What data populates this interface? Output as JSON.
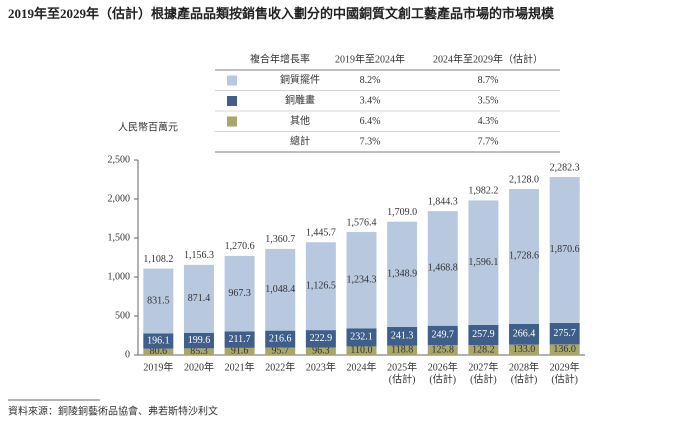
{
  "chart_data": {
    "type": "stacked_bar",
    "title": "2019年至2029年（估計）根據產品品類按銷售收入劃分的中國銅質文創工藝產品市場的市場規模",
    "y_label": "人民幣百萬元",
    "categories": [
      [
        "2019年"
      ],
      [
        "2020年"
      ],
      [
        "2021年"
      ],
      [
        "2022年"
      ],
      [
        "2023年"
      ],
      [
        "2024年"
      ],
      [
        "2025年",
        "(估計)"
      ],
      [
        "2026年",
        "(估計)"
      ],
      [
        "2027年",
        "(估計)"
      ],
      [
        "2028年",
        "(估計)"
      ],
      [
        "2029年",
        "(估計)"
      ]
    ],
    "series": [
      {
        "name": "其他",
        "color": "#a9a66c",
        "values": [
          80.6,
          85.3,
          91.6,
          95.7,
          96.3,
          110.0,
          118.8,
          125.8,
          128.2,
          133.0,
          136.0
        ],
        "value_labels": [
          "80.6",
          "85.3",
          "91.6",
          "95.7",
          "96.3",
          "110.0",
          "118.8",
          "125.8",
          "128.2",
          "133.0",
          "136.0"
        ]
      },
      {
        "name": "銅雕畫",
        "color": "#3f5f8a",
        "values": [
          196.1,
          199.6,
          211.7,
          216.6,
          222.9,
          232.1,
          241.3,
          249.7,
          257.9,
          266.4,
          275.7
        ],
        "value_labels": [
          "196.1",
          "199.6",
          "211.7",
          "216.6",
          "222.9",
          "232.1",
          "241.3",
          "249.7",
          "257.9",
          "266.4",
          "275.7"
        ]
      },
      {
        "name": "銅質擺件",
        "color": "#b8c8df",
        "values": [
          831.5,
          871.4,
          967.3,
          1048.4,
          1126.5,
          1234.3,
          1348.9,
          1468.8,
          1596.1,
          1728.6,
          1870.6
        ],
        "value_labels": [
          "831.5",
          "871.4",
          "967.3",
          "1,048.4",
          "1,126.5",
          "1,234.3",
          "1,348.9",
          "1,468.8",
          "1,596.1",
          "1,728.6",
          "1,870.6"
        ]
      }
    ],
    "totals": [
      1108.2,
      1156.3,
      1270.6,
      1360.7,
      1445.7,
      1576.4,
      1709.0,
      1844.3,
      1982.2,
      2128.0,
      2282.3
    ],
    "total_labels": [
      "1,108.2",
      "1,156.3",
      "1,270.6",
      "1,360.7",
      "1,445.7",
      "1,576.4",
      "1,709.0",
      "1,844.3",
      "1,982.2",
      "2,128.0",
      "2,282.3"
    ],
    "ylim": [
      0,
      2500
    ],
    "yticks": [
      0,
      500,
      {
        "value": 1000,
        "label": "1,000"
      },
      {
        "value": 1500,
        "label": "1,500"
      },
      {
        "value": 2000,
        "label": "2,000"
      },
      {
        "value": 2500,
        "label": "2,500"
      }
    ],
    "cagr_table": {
      "header": [
        "複合年增長率",
        "2019年至2024年",
        "2024年至2029年（估計）"
      ],
      "rows": [
        [
          "8.2%",
          "8.7%"
        ],
        [
          "3.4%",
          "3.5%"
        ],
        [
          "6.4%",
          "4.3%"
        ]
      ],
      "total_row": [
        "總計",
        "7.3%",
        "7.7%"
      ],
      "row_series": [
        2,
        1,
        0
      ]
    },
    "source": "資料來源：銅陵銅藝術品協會、弗若斯特沙利文"
  }
}
